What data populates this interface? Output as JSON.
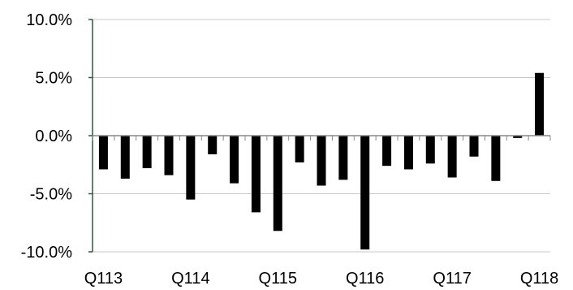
{
  "chart_data": {
    "type": "bar",
    "title": "",
    "xlabel": "",
    "ylabel": "",
    "ylim": [
      -10,
      10
    ],
    "y_ticks": [
      10,
      5,
      0,
      -5,
      -10
    ],
    "y_tick_labels": [
      "10.0%",
      "5.0%",
      "0.0%",
      "-5.0%",
      "-10.0%"
    ],
    "grid": "horizontal",
    "colors": {
      "bar": "#000000",
      "axis": "#2e5a3a",
      "grid": "#c8c8c8"
    },
    "categories": [
      "Q113",
      "Q213",
      "Q313",
      "Q413",
      "Q114",
      "Q214",
      "Q314",
      "Q414",
      "Q115",
      "Q215",
      "Q315",
      "Q415",
      "Q116",
      "Q216",
      "Q316",
      "Q416",
      "Q117",
      "Q217",
      "Q317",
      "Q417",
      "Q118"
    ],
    "x_tick_labels": [
      "Q113",
      "Q114",
      "Q115",
      "Q116",
      "Q117",
      "Q118"
    ],
    "values": [
      -2.9,
      -3.7,
      -2.8,
      -3.4,
      -5.5,
      -1.6,
      -4.1,
      -6.6,
      -8.2,
      -2.3,
      -4.3,
      -3.8,
      -9.8,
      -2.6,
      -2.9,
      -2.4,
      -3.6,
      -1.8,
      -3.9,
      -0.2,
      5.4
    ]
  }
}
